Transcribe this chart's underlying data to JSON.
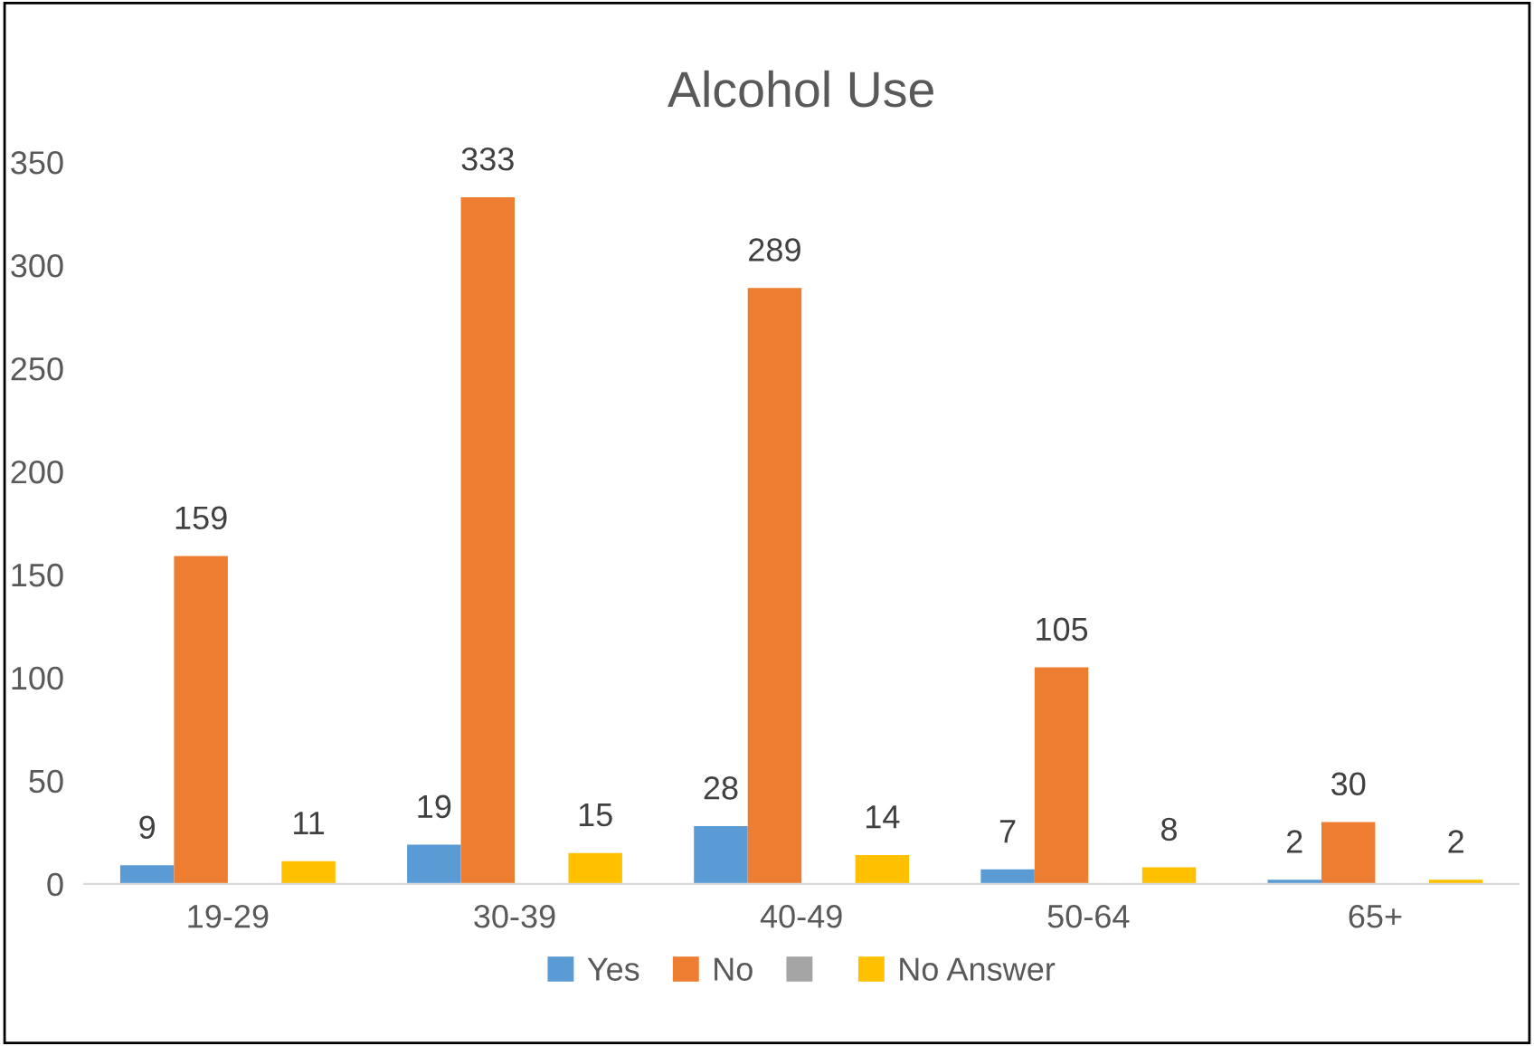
{
  "chart_data": {
    "type": "bar",
    "title": "Alcohol Use",
    "categories": [
      "19-29",
      "30-39",
      "40-49",
      "50-64",
      "65+"
    ],
    "series": [
      {
        "name": "Yes",
        "color": "#5b9bd5",
        "values": [
          9,
          19,
          28,
          7,
          2
        ]
      },
      {
        "name": "No",
        "color": "#ed7d31",
        "values": [
          159,
          333,
          289,
          105,
          30
        ]
      },
      {
        "color": "#a5a5a5",
        "values": [
          null,
          null,
          null,
          null,
          null
        ]
      },
      {
        "name": "No Answer",
        "color": "#ffc000",
        "values": [
          11,
          15,
          14,
          8,
          2
        ]
      }
    ],
    "ylim": [
      0,
      350
    ],
    "yticks": [
      0,
      50,
      100,
      150,
      200,
      250,
      300,
      350
    ],
    "data_labels": true,
    "grid": false,
    "legend": "bottom"
  }
}
